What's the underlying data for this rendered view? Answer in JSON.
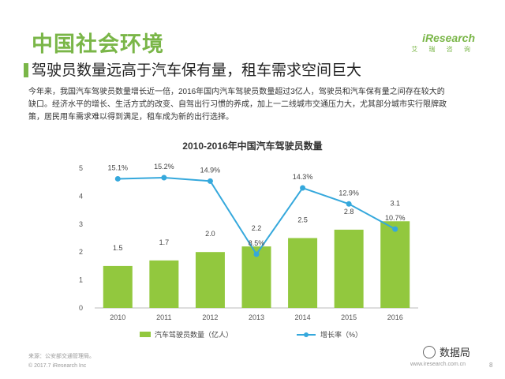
{
  "slide": {
    "title": "中国社会环境",
    "subtitle": "驾驶员数量远高于汽车保有量，租车需求空间巨大",
    "paragraph_line1": "今年来，我国汽车驾驶员数量增长近一倍，2016年国内汽车驾驶员数量超过3亿人，驾驶员和汽车保有量之间存在较大的",
    "paragraph_line2": "缺口。经济水平的增长、生活方式的改变、自驾出行习惯的养成，加上一二线城市交通压力大，尤其部分城市实行限牌政",
    "paragraph_line3": "策，居民用车需求难以得到满足，租车成为新的出行选择。"
  },
  "logo": {
    "main": "iResearch",
    "sub": "艾 瑞 咨 询"
  },
  "footer": {
    "source": "来源：公安部交通管理局。",
    "copyright": "© 2017.7 iResearch Inc",
    "url": "www.iresearch.com.cn",
    "page": "8"
  },
  "watermark": {
    "text": "数据局"
  },
  "colors": {
    "accent": "#7ab648",
    "bar": "#92c83e",
    "line": "#35a8dc"
  },
  "chart_data": {
    "type": "bar",
    "title": "2010-2016年中国汽车驾驶员数量",
    "categories": [
      "2010",
      "2011",
      "2012",
      "2013",
      "2014",
      "2015",
      "2016"
    ],
    "series": [
      {
        "name": "汽车驾驶员数量（亿人）",
        "type": "bar",
        "values": [
          1.5,
          1.7,
          2.0,
          2.2,
          2.5,
          2.8,
          3.1
        ],
        "labels": [
          "1.5",
          "1.7",
          "2.0",
          "2.2",
          "2.5",
          "2.8",
          "3.1"
        ]
      },
      {
        "name": "增长率（%）",
        "type": "line",
        "values": [
          15.1,
          15.2,
          14.9,
          8.5,
          14.3,
          12.9,
          10.7
        ],
        "labels": [
          "15.1%",
          "15.2%",
          "14.9%",
          "8.5%",
          "14.3%",
          "12.9%",
          "10.7%"
        ]
      }
    ],
    "ylim": [
      0,
      5
    ],
    "yticks": [
      "0",
      "1",
      "2",
      "3",
      "4",
      "5"
    ],
    "legend_position": "bottom"
  }
}
